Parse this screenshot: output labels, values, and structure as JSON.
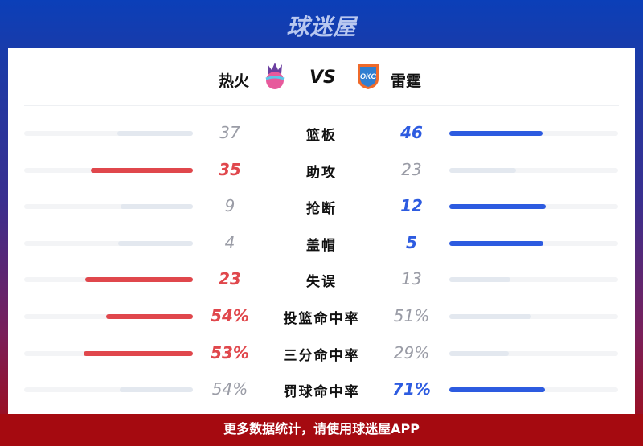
{
  "brand": "球迷屋",
  "home": {
    "name": "热火",
    "logo": "heat-logo"
  },
  "vs": "VS",
  "away": {
    "name": "雷霆",
    "logo": "okc-logo",
    "logo_text": "OKC"
  },
  "colors": {
    "left_win": "#e0474c",
    "right_win": "#2d5be0",
    "lose": "#e3e8ef",
    "track": "#f3f4f6"
  },
  "stats": [
    {
      "label": "篮板",
      "left": "37",
      "right": "46"
    },
    {
      "label": "助攻",
      "left": "35",
      "right": "23"
    },
    {
      "label": "抢断",
      "left": "9",
      "right": "12"
    },
    {
      "label": "盖帽",
      "left": "4",
      "right": "5"
    },
    {
      "label": "失误",
      "left": "23",
      "right": "13"
    },
    {
      "label": "投篮命中率",
      "left": "54%",
      "right": "51%"
    },
    {
      "label": "三分命中率",
      "left": "53%",
      "right": "29%"
    },
    {
      "label": "罚球命中率",
      "left": "54%",
      "right": "71%"
    }
  ],
  "footer": "更多数据统计，请使用球迷屋APP"
}
